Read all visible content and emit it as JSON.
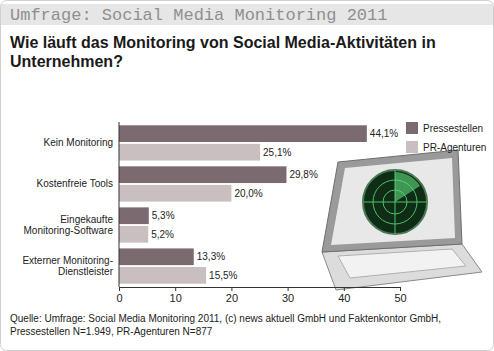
{
  "chart_data": {
    "type": "bar",
    "orientation": "horizontal",
    "header": "Umfrage: Social Media Monitoring 2011",
    "title": "Wie läuft das Monitoring von Social Media-Aktivitäten in Unternehmen?",
    "categories": [
      "Kein Monitoring",
      "Kostenfreie Tools",
      "Eingekaufte Monitoring-Software",
      "Externer Monitoring-Dienstleister"
    ],
    "series": [
      {
        "name": "Pressestellen",
        "color": "#7b6b70",
        "values": [
          44.1,
          29.8,
          5.3,
          13.3
        ],
        "value_labels": [
          "44,1%",
          "29,8%",
          "5,3%",
          "13,3%"
        ]
      },
      {
        "name": "PR-Agenturen",
        "color": "#c9bfc1",
        "values": [
          25.1,
          20.0,
          5.2,
          15.5
        ],
        "value_labels": [
          "25,1%",
          "20,0%",
          "5,2%",
          "15,5%"
        ]
      }
    ],
    "xlim": [
      0,
      50
    ],
    "xticks": [
      0,
      10,
      20,
      30,
      40,
      50
    ],
    "grid": false,
    "legend": "top-right",
    "data_labels": true,
    "source": "Quelle: Umfrage: Social Media Monitoring 2011, (c) news aktuell GmbH und Faktenkontor GmbH, Pressestellen N=1.949, PR-Agenturen N=877"
  }
}
